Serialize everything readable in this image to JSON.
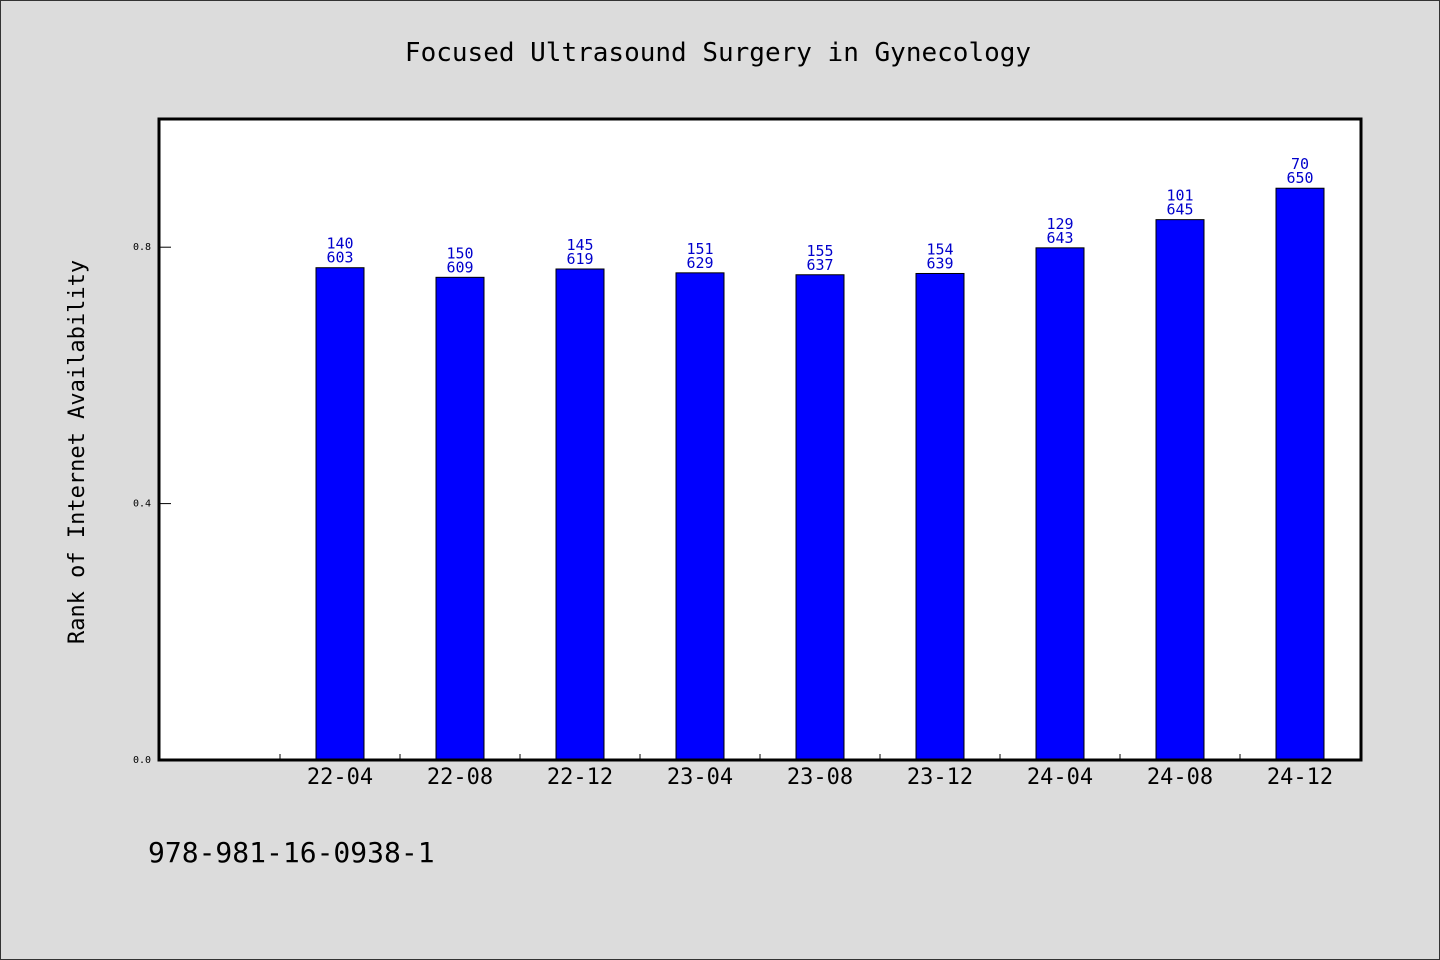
{
  "colors": {
    "background": "#dcdcdc",
    "plot_background": "#ffffff",
    "bar": "#0000ff",
    "data_label": "#0000cc"
  },
  "footnote": "978-981-16-0938-1",
  "chart_data": {
    "type": "bar",
    "title": "Focused Ultrasound Surgery in Gynecology",
    "xlabel": "",
    "ylabel": "Rank of Internet Availability",
    "ylim": [
      0,
      1.0
    ],
    "yticks": [
      0.0,
      0.4,
      0.8
    ],
    "ytick_labels": [
      "0.0",
      "0.4",
      "0.8"
    ],
    "grid": false,
    "categories": [
      "22-04",
      "22-08",
      "22-12",
      "23-04",
      "23-08",
      "23-12",
      "24-04",
      "24-08",
      "24-12"
    ],
    "values": [
      0.768,
      0.753,
      0.766,
      0.76,
      0.757,
      0.759,
      0.799,
      0.843,
      0.892
    ],
    "annotations_top": [
      "140",
      "150",
      "145",
      "151",
      "155",
      "154",
      "129",
      "101",
      "70"
    ],
    "annotations_bottom": [
      "603",
      "609",
      "619",
      "629",
      "637",
      "639",
      "643",
      "645",
      "650"
    ]
  }
}
